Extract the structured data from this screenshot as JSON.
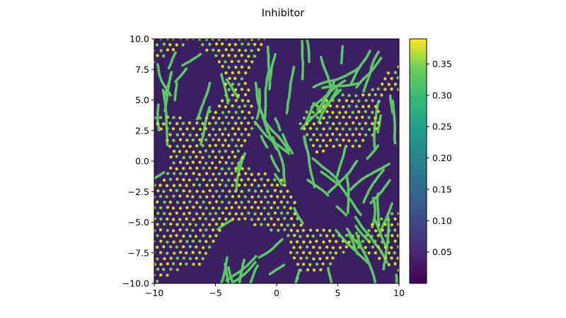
{
  "chart_data": {
    "type": "heatmap",
    "title": "Inhibitor",
    "xlabel": "",
    "ylabel": "",
    "xlim": [
      -10,
      10
    ],
    "ylim": [
      -10,
      10
    ],
    "x_ticks": [
      -10,
      -5,
      0,
      5,
      10
    ],
    "x_tick_labels": [
      "−10",
      "−5",
      "0",
      "5",
      "10"
    ],
    "y_ticks": [
      -10,
      -7.5,
      -5,
      -2.5,
      0,
      2.5,
      5,
      7.5,
      10
    ],
    "y_tick_labels": [
      "−10.0",
      "−7.5",
      "−5.0",
      "−2.5",
      "0.0",
      "2.5",
      "5.0",
      "7.5",
      "10.0"
    ],
    "colormap": "viridis",
    "value_range": [
      0.0,
      0.39
    ],
    "colorbar_ticks": [
      0.05,
      0.1,
      0.15,
      0.2,
      0.25,
      0.3,
      0.35
    ],
    "colorbar_tick_labels": [
      "0.05",
      "0.10",
      "0.15",
      "0.20",
      "0.25",
      "0.30",
      "0.35"
    ],
    "pattern": "Turing-type mixture of labyrinthine stripes and hexagonal spots",
    "grid": false
  }
}
